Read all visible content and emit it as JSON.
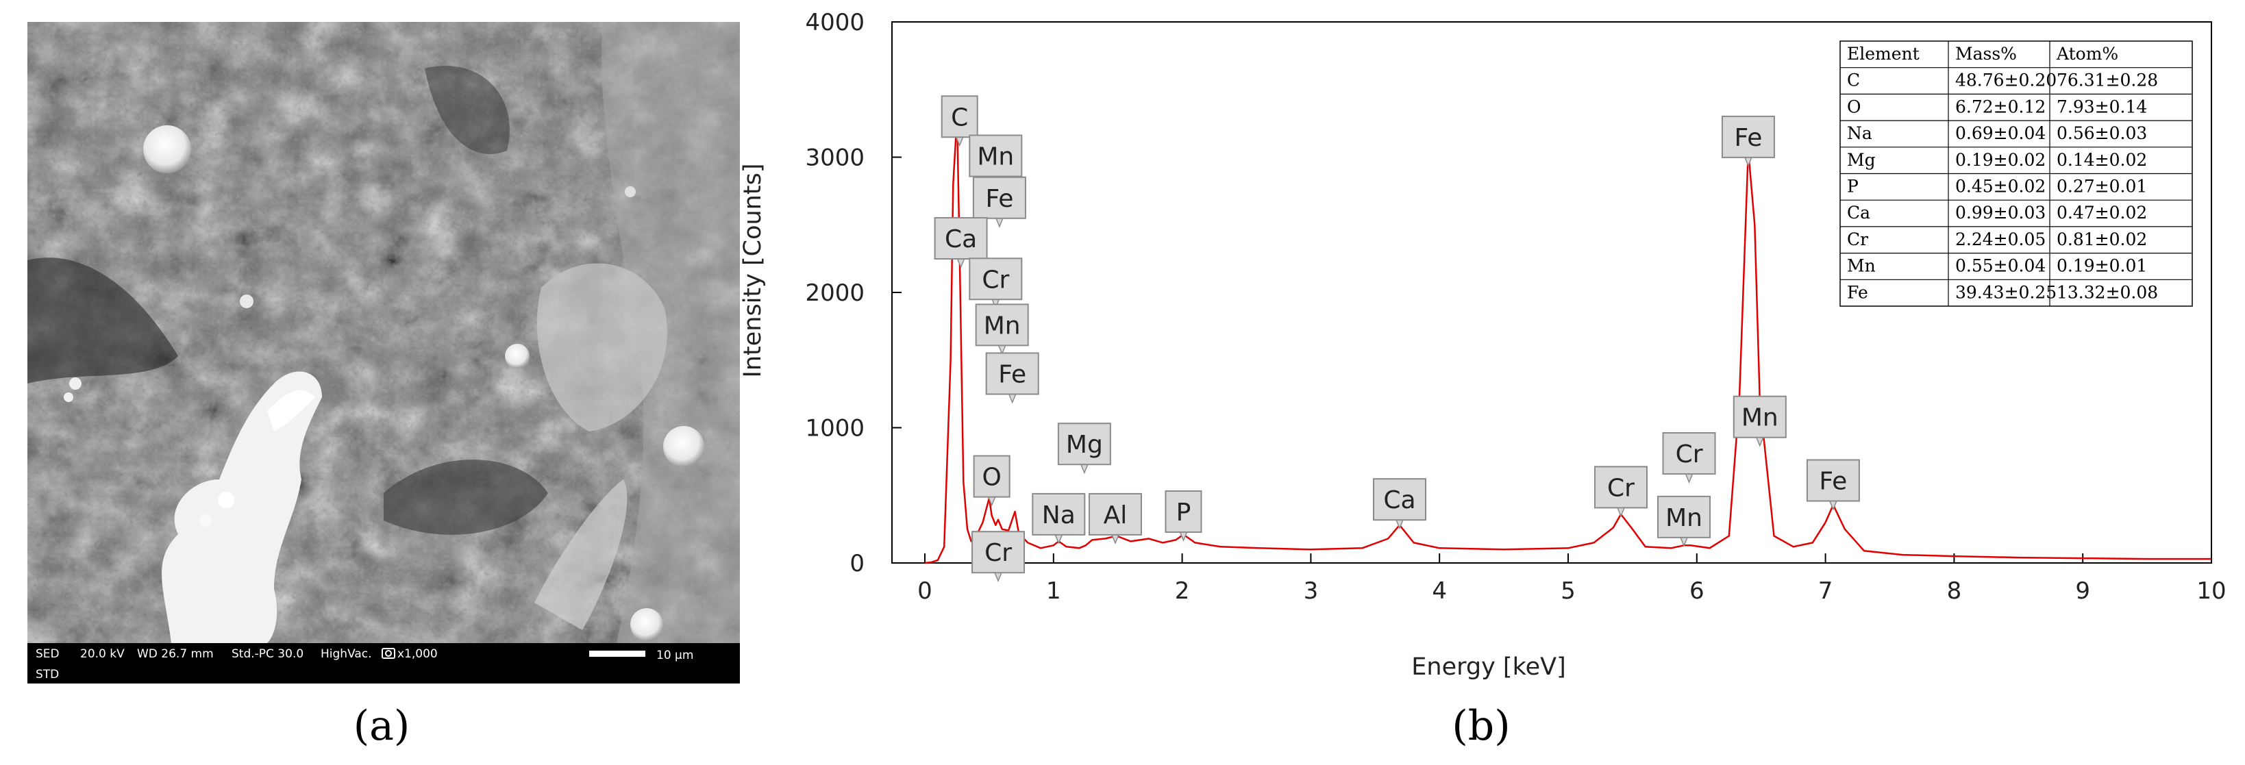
{
  "panel_a": {
    "letter": "(a)",
    "sem_footer": {
      "mode": "SED",
      "voltage": "20.0 kV",
      "working_distance": "WD 26.7 mm",
      "probe": "Std.-PC 30.0",
      "vacuum": "HighVac.",
      "magnification": "x1,000",
      "scale_bar": "10 μm",
      "second_line": "STD"
    },
    "colors": {
      "footer_bg": "#000000",
      "footer_text": "#ffffff"
    }
  },
  "panel_b": {
    "letter": "(b)",
    "colors": {
      "spectrum": "#e00000",
      "label_fill": "#d9d9d9",
      "label_stroke": "#8a8a8a"
    },
    "element_table": {
      "headers": [
        "Element",
        "Mass%",
        "Atom%"
      ],
      "rows": [
        [
          "C",
          "48.76±0.20",
          "76.31±0.28"
        ],
        [
          "O",
          "6.72±0.12",
          "7.93±0.14"
        ],
        [
          "Na",
          "0.69±0.04",
          "0.56±0.03"
        ],
        [
          "Mg",
          "0.19±0.02",
          "0.14±0.02"
        ],
        [
          "P",
          "0.45±0.02",
          "0.27±0.01"
        ],
        [
          "Ca",
          "0.99±0.03",
          "0.47±0.02"
        ],
        [
          "Cr",
          "2.24±0.05",
          "0.81±0.02"
        ],
        [
          "Mn",
          "0.55±0.04",
          "0.19±0.01"
        ],
        [
          "Fe",
          "39.43±0.25",
          "13.32±0.08"
        ]
      ]
    }
  },
  "chart_data": {
    "type": "line",
    "title": "",
    "xlabel": "Energy [keV]",
    "ylabel": "Intensity [Counts]",
    "xlim": [
      0,
      10
    ],
    "ylim": [
      0,
      4000
    ],
    "xticks": [
      0,
      1,
      2,
      3,
      4,
      5,
      6,
      7,
      8,
      9,
      10
    ],
    "yticks": [
      0,
      1000,
      2000,
      3000,
      4000
    ],
    "grid": false,
    "legend": "none",
    "series": [
      {
        "x": [
          0.0,
          0.05,
          0.1,
          0.15,
          0.2,
          0.22,
          0.25,
          0.27,
          0.3,
          0.33,
          0.36,
          0.4,
          0.45,
          0.5,
          0.52,
          0.55,
          0.57,
          0.6,
          0.65,
          0.7,
          0.73,
          0.8,
          0.9,
          1.0,
          1.04,
          1.1,
          1.2,
          1.25,
          1.3,
          1.4,
          1.49,
          1.6,
          1.74,
          1.85,
          1.95,
          2.01,
          2.1,
          2.3,
          2.6,
          3.0,
          3.4,
          3.6,
          3.69,
          3.8,
          4.0,
          4.5,
          5.0,
          5.2,
          5.35,
          5.41,
          5.5,
          5.6,
          5.8,
          5.9,
          5.95,
          6.1,
          6.25,
          6.33,
          6.4,
          6.45,
          6.49,
          6.6,
          6.75,
          6.9,
          7.0,
          7.06,
          7.15,
          7.3,
          7.6,
          8.0,
          8.5,
          9.0,
          9.5,
          10.0
        ],
        "y": [
          0,
          5,
          20,
          120,
          1500,
          2800,
          3300,
          2300,
          600,
          250,
          160,
          200,
          300,
          480,
          350,
          280,
          320,
          250,
          240,
          380,
          220,
          150,
          110,
          130,
          160,
          120,
          110,
          130,
          170,
          180,
          200,
          160,
          180,
          150,
          170,
          210,
          150,
          120,
          110,
          100,
          110,
          180,
          280,
          150,
          110,
          100,
          110,
          150,
          260,
          360,
          250,
          120,
          110,
          130,
          130,
          110,
          200,
          1200,
          3050,
          2500,
          1200,
          200,
          120,
          150,
          300,
          430,
          250,
          90,
          60,
          50,
          40,
          35,
          30,
          30
        ]
      }
    ],
    "annotations": [
      {
        "text": "C",
        "x": 0.27,
        "y": 3300
      },
      {
        "text": "Mn",
        "x": 0.55,
        "y": 3010
      },
      {
        "text": "Fe",
        "x": 0.58,
        "y": 2700
      },
      {
        "text": "Ca",
        "x": 0.28,
        "y": 2400
      },
      {
        "text": "Cr",
        "x": 0.55,
        "y": 2100
      },
      {
        "text": "Mn",
        "x": 0.6,
        "y": 1760
      },
      {
        "text": "Fe",
        "x": 0.68,
        "y": 1400
      },
      {
        "text": "Mg",
        "x": 1.24,
        "y": 880
      },
      {
        "text": "O",
        "x": 0.52,
        "y": 640
      },
      {
        "text": "Na",
        "x": 1.04,
        "y": 360
      },
      {
        "text": "Al",
        "x": 1.48,
        "y": 360
      },
      {
        "text": "P",
        "x": 2.01,
        "y": 380
      },
      {
        "text": "Ca",
        "x": 3.69,
        "y": 470
      },
      {
        "text": "Cr",
        "x": 5.41,
        "y": 560
      },
      {
        "text": "Cr",
        "x": 5.94,
        "y": 810
      },
      {
        "text": "Mn",
        "x": 5.9,
        "y": 340
      },
      {
        "text": "Fe",
        "x": 6.4,
        "y": 3150
      },
      {
        "text": "Mn",
        "x": 6.49,
        "y": 1080
      },
      {
        "text": "Fe",
        "x": 7.06,
        "y": 610
      },
      {
        "text": "Cr",
        "x": 0.57,
        "y": 80
      }
    ]
  }
}
